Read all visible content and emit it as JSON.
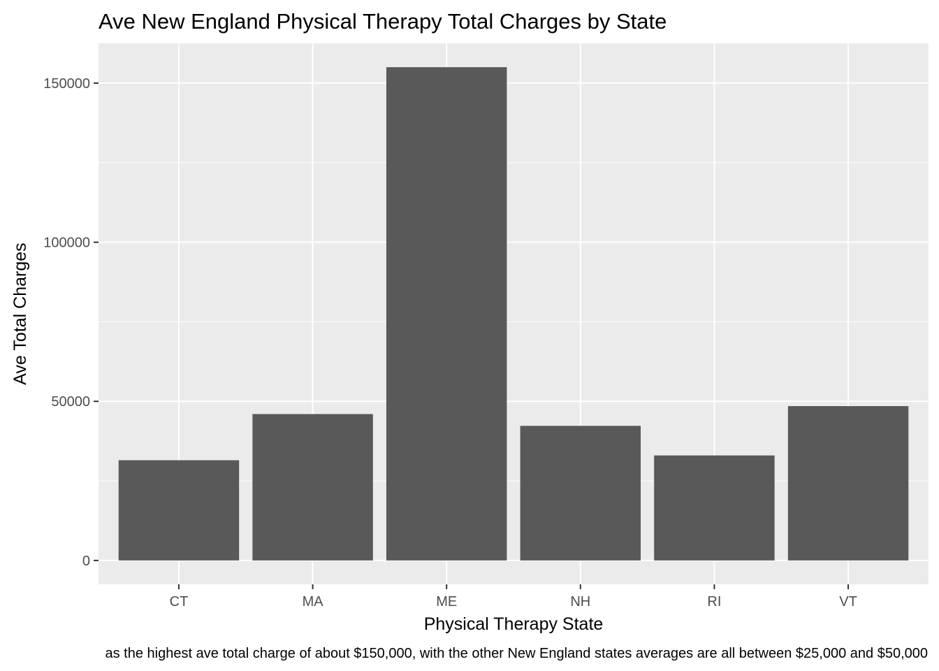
{
  "chart_data": {
    "type": "bar",
    "title": "Ave New England Physical Therapy Total Charges by State",
    "xlabel": "Physical Therapy State",
    "ylabel": "Ave Total Charges",
    "caption": "as the highest ave total charge of about $150,000, with the other New England states averages are all between $25,000 and $50,000",
    "categories": [
      "CT",
      "MA",
      "ME",
      "NH",
      "RI",
      "VT"
    ],
    "values": [
      31500,
      46000,
      155000,
      42300,
      33000,
      48500
    ],
    "ylim": [
      -7500,
      162500
    ],
    "yticks": [
      0,
      50000,
      100000,
      150000
    ],
    "ytick_labels": [
      "0",
      "50000",
      "100000",
      "150000"
    ],
    "grid": true,
    "legend": "none",
    "colors": {
      "bar": "#595959",
      "panel": "#ebebeb",
      "grid_major": "#ffffff",
      "tick_text": "#4d4d4d"
    }
  }
}
